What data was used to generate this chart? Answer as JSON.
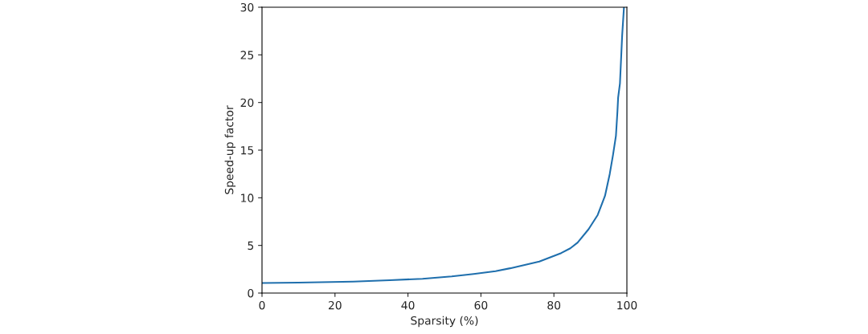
{
  "chart_data": {
    "type": "line",
    "xlabel": "Sparsity (%)",
    "ylabel": "Speed-up factor",
    "series": [
      {
        "color": "#1f6fad",
        "x": [
          0,
          10,
          25,
          35,
          44,
          52,
          58,
          64,
          68,
          72,
          76,
          79,
          82,
          84.5,
          86.5,
          89.5,
          92,
          94,
          95.3,
          96.2,
          97,
          97.4,
          97.6,
          98.1,
          98.7,
          99.2
        ],
        "values": [
          1.05,
          1.1,
          1.2,
          1.35,
          1.5,
          1.75,
          2.0,
          2.3,
          2.6,
          2.95,
          3.3,
          3.75,
          4.2,
          4.7,
          5.3,
          6.7,
          8.2,
          10.2,
          12.5,
          14.5,
          16.5,
          19,
          20.5,
          22,
          27,
          30
        ]
      }
    ],
    "xlim": [
      0,
      100
    ],
    "ylim": [
      0,
      30
    ],
    "xticks": [
      0,
      20,
      40,
      60,
      80,
      100
    ],
    "yticks": [
      0,
      5,
      10,
      15,
      20,
      25,
      30
    ],
    "grid": false,
    "legend": false,
    "marker": "none",
    "line_style": "solid"
  }
}
